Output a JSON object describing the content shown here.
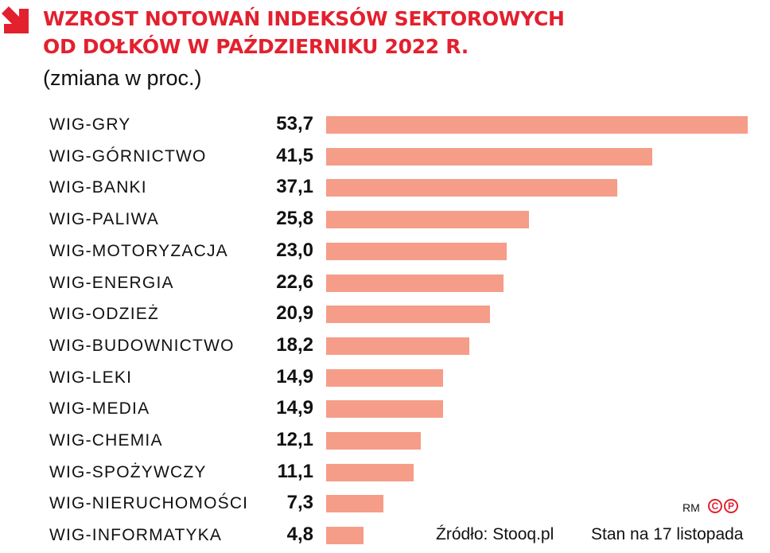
{
  "header": {
    "title_line1": "WZROST NOTOWAŃ INDEKSÓW SEKTOROWYCH",
    "title_line2": "OD DOŁKÓW W PAŹDZIERNIKU 2022 R.",
    "subtitle": "(zmiana w proc.)",
    "accent_color": "#e3202e",
    "icon": "arrow-down-right-icon"
  },
  "rows": [
    {
      "label": "WIG-GRY",
      "value": "53,7"
    },
    {
      "label": "WIG-GÓRNICTWO",
      "value": "41,5"
    },
    {
      "label": "WIG-BANKI",
      "value": "37,1"
    },
    {
      "label": "WIG-PALIWA",
      "value": "25,8"
    },
    {
      "label": "WIG-MOTORYZACJA",
      "value": "23,0"
    },
    {
      "label": "WIG-ENERGIA",
      "value": "22,6"
    },
    {
      "label": "WIG-ODZIEŻ",
      "value": "20,9"
    },
    {
      "label": "WIG-BUDOWNICTWO",
      "value": "18,2"
    },
    {
      "label": "WIG-LEKI",
      "value": "14,9"
    },
    {
      "label": "WIG-MEDIA",
      "value": "14,9"
    },
    {
      "label": "WIG-CHEMIA",
      "value": "12,1"
    },
    {
      "label": "WIG-SPOŻYWCZY",
      "value": "11,1"
    },
    {
      "label": "WIG-NIERUCHOMOŚCI",
      "value": "7,3"
    },
    {
      "label": "WIG-INFORMATYKA",
      "value": "4,8"
    }
  ],
  "footer": {
    "credit": "RM",
    "copyright_c": "C",
    "copyright_p": "P",
    "source": "Źródło: Stooq.pl",
    "date": "Stan na 17 listopada"
  },
  "chart_data": {
    "type": "bar",
    "orientation": "horizontal",
    "title": "WZROST NOTOWAŃ INDEKSÓW SEKTOROWYCH OD DOŁKÓW W PAŹDZIERNIKU 2022 R.",
    "subtitle": "(zmiana w proc.)",
    "categories": [
      "WIG-GRY",
      "WIG-GÓRNICTWO",
      "WIG-BANKI",
      "WIG-PALIWA",
      "WIG-MOTORYZACJA",
      "WIG-ENERGIA",
      "WIG-ODZIEŻ",
      "WIG-BUDOWNICTWO",
      "WIG-LEKI",
      "WIG-MEDIA",
      "WIG-CHEMIA",
      "WIG-SPOŻYWCZY",
      "WIG-NIERUCHOMOŚCI",
      "WIG-INFORMATYKA"
    ],
    "values": [
      53.7,
      41.5,
      37.1,
      25.8,
      23.0,
      22.6,
      20.9,
      18.2,
      14.9,
      14.9,
      12.1,
      11.1,
      7.3,
      4.8
    ],
    "xlabel": "",
    "ylabel": "",
    "bar_color": "#f59d88",
    "grid": false,
    "legend": null,
    "source": "Źródło: Stooq.pl",
    "note": "Stan na 17 listopada"
  }
}
